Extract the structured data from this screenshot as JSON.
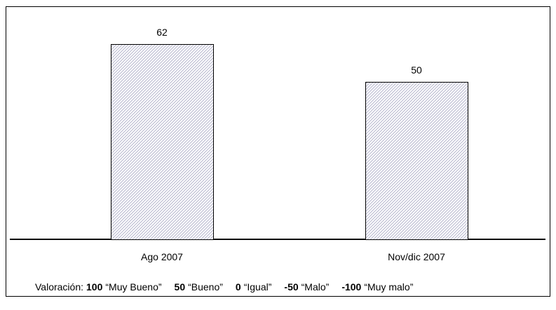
{
  "chart_data": {
    "type": "bar",
    "categories": [
      "Ago 2007",
      "Nov/dic 2007"
    ],
    "values": [
      62,
      50
    ],
    "color": "#b4b4cc",
    "footnote": {
      "prefix": "Valoración:",
      "items": [
        {
          "value": "100",
          "label": "“Muy Bueno”"
        },
        {
          "value": "50",
          "label": "“Bueno”"
        },
        {
          "value": "0",
          "label": "“Igual”"
        },
        {
          "value": "-50",
          "label": "“Malo”"
        },
        {
          "value": "-100",
          "label": "“Muy malo”"
        }
      ]
    }
  }
}
